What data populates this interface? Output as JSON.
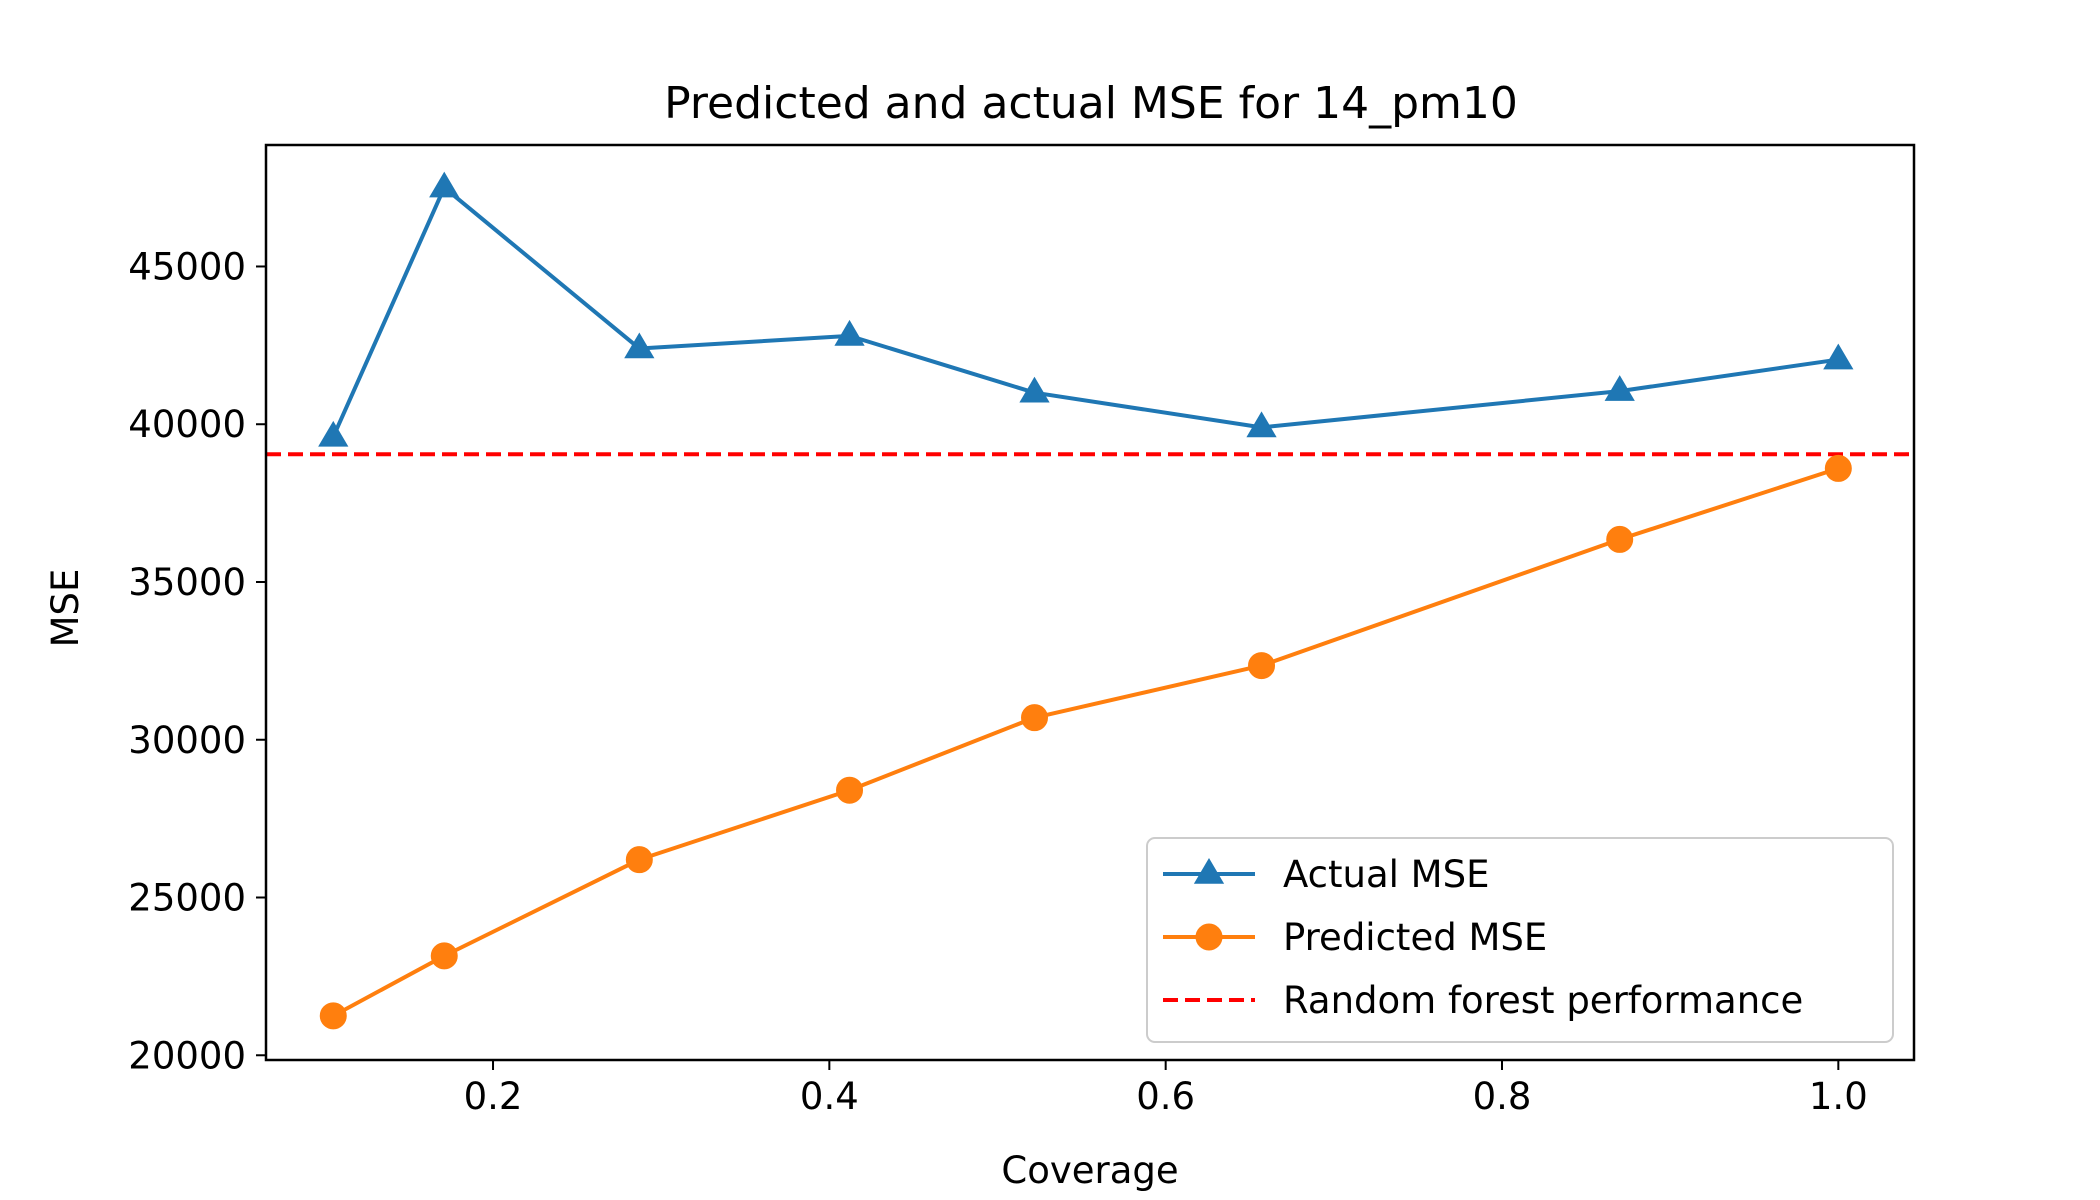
{
  "chart_data": {
    "type": "line",
    "title": "Predicted and actual MSE for 14_pm10",
    "xlabel": "Coverage",
    "ylabel": "MSE",
    "xlim": [
      0.065,
      1.045
    ],
    "ylim": [
      19850,
      48850
    ],
    "xticks": [
      0.2,
      0.4,
      0.6,
      0.8,
      1.0
    ],
    "xtick_labels": [
      "0.2",
      "0.4",
      "0.6",
      "0.8",
      "1.0"
    ],
    "yticks": [
      20000,
      25000,
      30000,
      35000,
      40000,
      45000
    ],
    "ytick_labels": [
      "20000",
      "25000",
      "30000",
      "35000",
      "40000",
      "45000"
    ],
    "grid": false,
    "legend_position": "lower-right",
    "series": [
      {
        "name": "Actual MSE",
        "color": "#1f77b4",
        "marker": "triangle",
        "line_style": "solid",
        "x": [
          0.105,
          0.171,
          0.287,
          0.412,
          0.522,
          0.657,
          0.87,
          1.0
        ],
        "values": [
          39600,
          47500,
          42400,
          42800,
          41000,
          39900,
          41050,
          42050
        ]
      },
      {
        "name": "Predicted MSE",
        "color": "#ff7f0e",
        "marker": "circle",
        "line_style": "solid",
        "x": [
          0.105,
          0.171,
          0.287,
          0.412,
          0.522,
          0.657,
          0.87,
          1.0
        ],
        "values": [
          21250,
          23150,
          26200,
          28400,
          30700,
          32350,
          36350,
          38600
        ]
      }
    ],
    "reference_lines": [
      {
        "name": "Random forest performance",
        "color": "#ff0000",
        "line_style": "dashed",
        "y": 39050
      }
    ]
  }
}
